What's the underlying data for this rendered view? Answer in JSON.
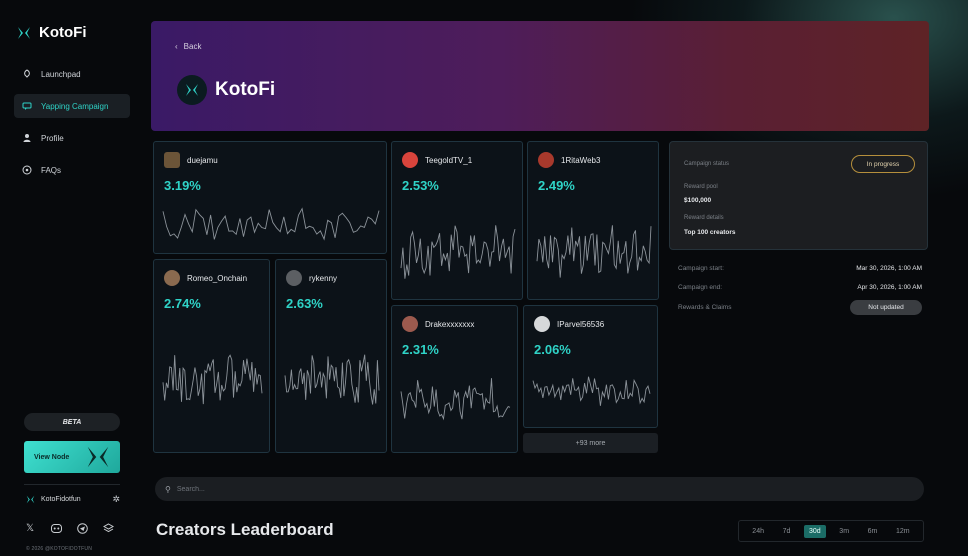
{
  "brand": {
    "name": "KotoFi"
  },
  "sidebar": {
    "items": [
      {
        "label": "Launchpad",
        "icon": "rocket-icon",
        "active": false
      },
      {
        "label": "Yapping Campaign",
        "icon": "chat-icon",
        "active": true
      },
      {
        "label": "Profile",
        "icon": "user-icon",
        "active": false
      },
      {
        "label": "FAQs",
        "icon": "question-icon",
        "active": false
      }
    ],
    "beta_label": "BETA",
    "view_node_label": "View Node",
    "account_name": "KotoFidotfun",
    "socials": [
      "x-icon",
      "discord-icon",
      "telegram-icon",
      "layers-icon"
    ],
    "copyright": "© 2026 @KOTOFIDOTFUN"
  },
  "hero": {
    "back_label": "Back",
    "title": "KotoFi"
  },
  "creators": [
    {
      "name": "duejamu",
      "pct": "3.19%"
    },
    {
      "name": "TeegoldTV_1",
      "pct": "2.53%"
    },
    {
      "name": "1RitaWeb3",
      "pct": "2.49%"
    },
    {
      "name": "Romeo_Onchain",
      "pct": "2.74%"
    },
    {
      "name": "rykenny",
      "pct": "2.63%"
    },
    {
      "name": "Drakexxxxxxx",
      "pct": "2.31%"
    },
    {
      "name": "IParvel56536",
      "pct": "2.06%"
    }
  ],
  "more_label": "+93 more",
  "campaign": {
    "status_label": "Campaign status",
    "status_value": "In progress",
    "reward_pool_label": "Reward pool",
    "reward_pool_value": "$100,000",
    "reward_details_label": "Reward details",
    "reward_details_value": "Top 100 creators",
    "start_label": "Campaign start:",
    "start_value": "Mar 30, 2026, 1:00 AM",
    "end_label": "Campaign end:",
    "end_value": "Apr 30, 2026, 1:00 AM",
    "rewards_label": "Rewards & Claims",
    "rewards_value": "Not updated"
  },
  "search": {
    "placeholder": "Search..."
  },
  "leaderboard": {
    "title": "Creators Leaderboard",
    "ranges": [
      "24h",
      "7d",
      "30d",
      "3m",
      "6m",
      "12m"
    ],
    "active_range": "30d"
  },
  "colors": {
    "accent": "#2fd3c7",
    "card_border": "#1f3440",
    "status_border": "#b58f3c"
  }
}
